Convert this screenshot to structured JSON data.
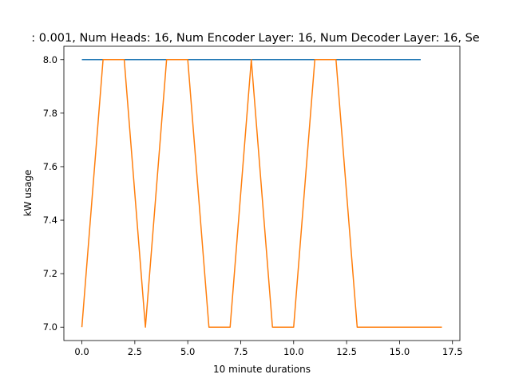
{
  "chart_data": {
    "type": "line",
    "title": ": 0.001, Num Heads: 16, Num Encoder Layer: 16, Num Decoder Layer: 16, Se",
    "xlabel": "10 minute durations",
    "ylabel": "kW usage",
    "xlim": [
      -0.85,
      17.85
    ],
    "ylim": [
      6.95,
      8.05
    ],
    "x_ticks": [
      0.0,
      2.5,
      5.0,
      7.5,
      10.0,
      12.5,
      15.0,
      17.5
    ],
    "x_tick_labels": [
      "0.0",
      "2.5",
      "5.0",
      "7.5",
      "10.0",
      "12.5",
      "15.0",
      "17.5"
    ],
    "y_ticks": [
      7.0,
      7.2,
      7.4,
      7.6,
      7.8,
      8.0
    ],
    "y_tick_labels": [
      "7.0",
      "7.2",
      "7.4",
      "7.6",
      "7.8",
      "8.0"
    ],
    "grid": false,
    "legend": "none",
    "series": [
      {
        "color": "#1f77b4",
        "x": [
          0,
          1,
          2,
          3,
          4,
          5,
          6,
          7,
          8,
          9,
          10,
          11,
          12,
          13,
          14,
          15,
          16
        ],
        "y": [
          8.0,
          8.0,
          8.0,
          8.0,
          8.0,
          8.0,
          8.0,
          8.0,
          8.0,
          8.0,
          8.0,
          8.0,
          8.0,
          8.0,
          8.0,
          8.0,
          8.0
        ]
      },
      {
        "color": "#ff7f0e",
        "x": [
          0,
          1,
          2,
          3,
          4,
          5,
          6,
          7,
          8,
          9,
          10,
          11,
          12,
          13,
          14,
          15,
          16,
          17
        ],
        "y": [
          7.0,
          8.0,
          8.0,
          7.0,
          8.0,
          8.0,
          7.0,
          7.0,
          8.0,
          7.0,
          7.0,
          8.0,
          8.0,
          7.0,
          7.0,
          7.0,
          7.0,
          7.0
        ]
      }
    ]
  }
}
